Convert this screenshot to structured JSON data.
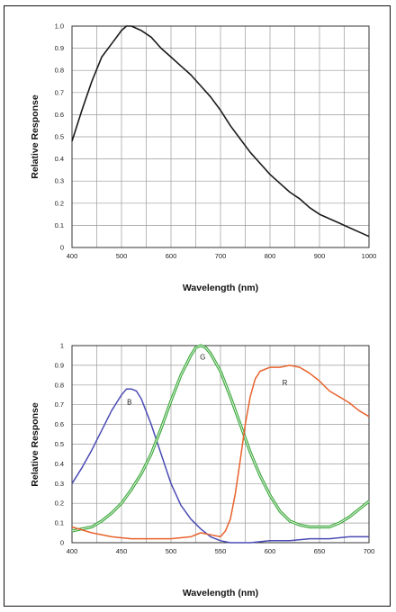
{
  "chart_data": [
    {
      "type": "line",
      "xlabel": "Wavelength (nm)",
      "ylabel": "Relative Response",
      "xlim": [
        400,
        1000
      ],
      "ylim": [
        0,
        1.0
      ],
      "grid": true,
      "x_ticks": [
        "400",
        "500",
        "600",
        "700",
        "800",
        "900",
        "1000"
      ],
      "y_ticks": [
        "0",
        "0.1",
        "0.2",
        "0.3",
        "0.4",
        "0.5",
        "0.6",
        "0.7",
        "0.8",
        "0.9",
        "1.0"
      ],
      "series": [
        {
          "color": "#1a1a1a",
          "x": [
            400,
            420,
            440,
            460,
            480,
            500,
            510,
            520,
            540,
            560,
            580,
            600,
            620,
            640,
            660,
            680,
            700,
            720,
            740,
            760,
            780,
            800,
            820,
            840,
            860,
            880,
            900,
            920,
            940,
            960,
            980,
            1000
          ],
          "y": [
            0.48,
            0.62,
            0.75,
            0.86,
            0.92,
            0.98,
            1.0,
            1.0,
            0.98,
            0.95,
            0.9,
            0.86,
            0.82,
            0.78,
            0.73,
            0.68,
            0.62,
            0.55,
            0.49,
            0.43,
            0.38,
            0.33,
            0.29,
            0.25,
            0.22,
            0.18,
            0.15,
            0.13,
            0.11,
            0.09,
            0.07,
            0.05
          ]
        }
      ]
    },
    {
      "type": "line",
      "xlabel": "Wavelength (nm)",
      "ylabel": "Relative Response",
      "xlim": [
        400,
        700
      ],
      "ylim": [
        0,
        1.0
      ],
      "grid": true,
      "x_ticks": [
        "400",
        "450",
        "500",
        "550",
        "600",
        "650",
        "700"
      ],
      "y_ticks": [
        "0",
        "0.1",
        "0.2",
        "0.3",
        "0.4",
        "0.5",
        "0.6",
        "0.7",
        "0.8",
        "0.9",
        "1"
      ],
      "series": [
        {
          "name": "B",
          "color": "#4b4bb5",
          "x": [
            400,
            410,
            420,
            430,
            440,
            450,
            455,
            460,
            465,
            470,
            480,
            490,
            500,
            510,
            520,
            530,
            540,
            550,
            560,
            570,
            580,
            600,
            620,
            640,
            660,
            680,
            700
          ],
          "y": [
            0.3,
            0.38,
            0.47,
            0.57,
            0.67,
            0.75,
            0.78,
            0.78,
            0.77,
            0.73,
            0.6,
            0.45,
            0.3,
            0.19,
            0.12,
            0.07,
            0.03,
            0.01,
            0.0,
            0.0,
            0.0,
            0.01,
            0.01,
            0.02,
            0.02,
            0.03,
            0.03
          ]
        },
        {
          "name": "G",
          "color": "#3aa83a",
          "x": [
            400,
            410,
            420,
            430,
            440,
            450,
            460,
            470,
            480,
            490,
            500,
            510,
            520,
            525,
            530,
            535,
            540,
            550,
            560,
            570,
            580,
            590,
            600,
            610,
            620,
            630,
            640,
            650,
            660,
            670,
            680,
            690,
            700
          ],
          "y": [
            0.06,
            0.07,
            0.08,
            0.11,
            0.15,
            0.2,
            0.27,
            0.35,
            0.45,
            0.58,
            0.72,
            0.85,
            0.95,
            0.99,
            1.0,
            0.99,
            0.96,
            0.87,
            0.74,
            0.6,
            0.46,
            0.34,
            0.24,
            0.16,
            0.11,
            0.09,
            0.08,
            0.08,
            0.08,
            0.1,
            0.13,
            0.17,
            0.21
          ]
        },
        {
          "name": "R",
          "color": "#e8622c",
          "x": [
            400,
            420,
            440,
            460,
            480,
            500,
            520,
            530,
            540,
            550,
            555,
            560,
            565,
            570,
            575,
            580,
            585,
            590,
            600,
            610,
            620,
            630,
            640,
            650,
            660,
            670,
            680,
            690,
            700
          ],
          "y": [
            0.08,
            0.05,
            0.03,
            0.02,
            0.02,
            0.02,
            0.03,
            0.05,
            0.04,
            0.03,
            0.06,
            0.12,
            0.25,
            0.42,
            0.6,
            0.74,
            0.83,
            0.87,
            0.89,
            0.89,
            0.9,
            0.89,
            0.86,
            0.82,
            0.77,
            0.74,
            0.71,
            0.67,
            0.64
          ]
        }
      ]
    }
  ]
}
